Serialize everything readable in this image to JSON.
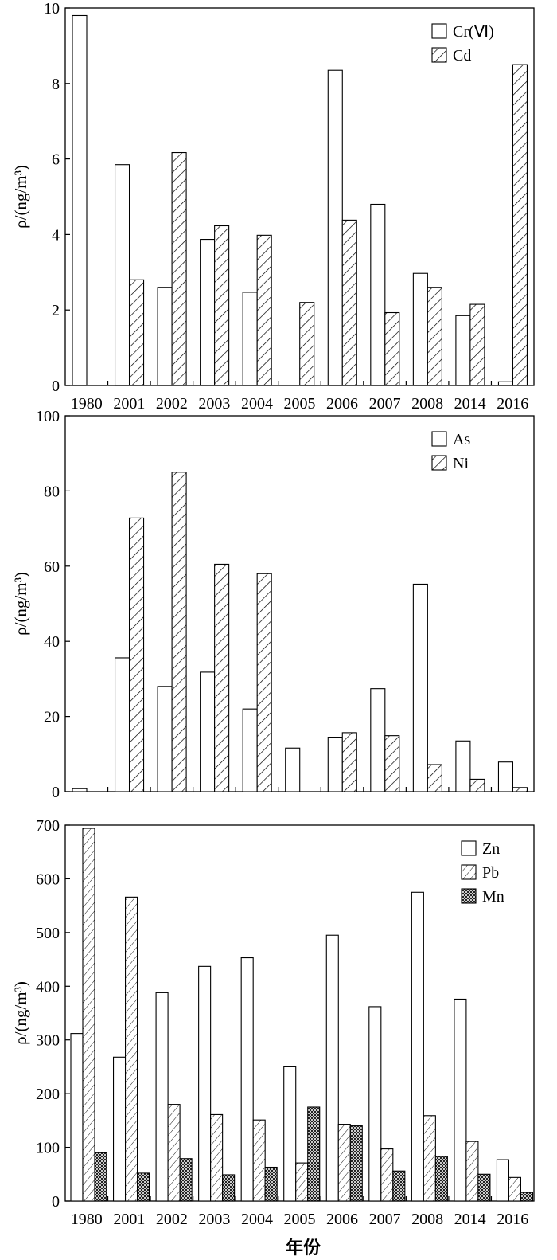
{
  "xaxis_title": "年份",
  "colors": {
    "bar_fill": "#ffffff",
    "stroke": "#000000"
  },
  "chart_data": [
    {
      "type": "bar",
      "categories": [
        "1980",
        "2001",
        "2002",
        "2003",
        "2004",
        "2005",
        "2006",
        "2007",
        "2008",
        "2014",
        "2016"
      ],
      "ylabel": "ρ/(ng/m³)",
      "ylim": [
        0,
        10
      ],
      "yticks": [
        0,
        2,
        4,
        6,
        8,
        10
      ],
      "legend_position": "top-right",
      "series": [
        {
          "name": "Cr(Ⅵ)",
          "pattern": "plain",
          "values": [
            9.8,
            5.85,
            2.6,
            3.87,
            2.47,
            null,
            8.35,
            4.8,
            2.97,
            1.85,
            0.1
          ]
        },
        {
          "name": "Cd",
          "pattern": "hatch",
          "values": [
            null,
            2.8,
            6.17,
            4.23,
            3.98,
            2.2,
            4.38,
            1.93,
            2.6,
            2.15,
            8.5
          ]
        }
      ]
    },
    {
      "type": "bar",
      "categories": [
        "1980",
        "2001",
        "2002",
        "2003",
        "2004",
        "2005",
        "2006",
        "2007",
        "2008",
        "2014",
        "2016"
      ],
      "ylabel": "ρ/(ng/m³)",
      "ylim": [
        0,
        100
      ],
      "yticks": [
        0,
        20,
        40,
        60,
        80,
        100
      ],
      "legend_position": "top-right",
      "series": [
        {
          "name": "As",
          "pattern": "plain",
          "values": [
            0.8,
            35.6,
            28.0,
            31.8,
            22.0,
            11.6,
            14.5,
            27.4,
            55.2,
            13.5,
            7.9
          ]
        },
        {
          "name": "Ni",
          "pattern": "hatch",
          "values": [
            null,
            72.8,
            85.0,
            60.5,
            58.0,
            null,
            15.7,
            14.9,
            7.2,
            3.3,
            1.1
          ]
        }
      ]
    },
    {
      "type": "bar",
      "categories": [
        "1980",
        "2001",
        "2002",
        "2003",
        "2004",
        "2005",
        "2006",
        "2007",
        "2008",
        "2014",
        "2016"
      ],
      "ylabel": "ρ/(ng/m³)",
      "ylim": [
        0,
        700
      ],
      "yticks": [
        0,
        100,
        200,
        300,
        400,
        500,
        600,
        700
      ],
      "legend_position": "top-right",
      "series": [
        {
          "name": "Zn",
          "pattern": "plain",
          "values": [
            312,
            268,
            388,
            437,
            453,
            250,
            495,
            362,
            575,
            376,
            77
          ]
        },
        {
          "name": "Pb",
          "pattern": "finehatch",
          "values": [
            694,
            566,
            180,
            161,
            151,
            71,
            143,
            97,
            159,
            111,
            44
          ]
        },
        {
          "name": "Mn",
          "pattern": "crosshatch",
          "values": [
            90,
            52,
            79,
            49,
            63,
            175,
            140,
            56,
            83,
            50,
            16
          ]
        }
      ]
    }
  ]
}
